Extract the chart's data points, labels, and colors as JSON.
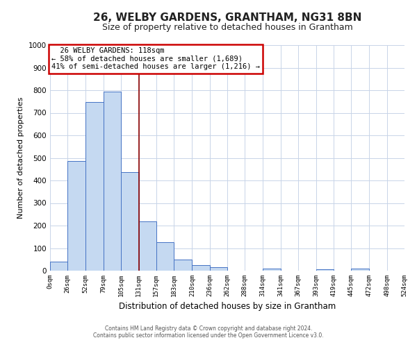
{
  "title1": "26, WELBY GARDENS, GRANTHAM, NG31 8BN",
  "title2": "Size of property relative to detached houses in Grantham",
  "xlabel": "Distribution of detached houses by size in Grantham",
  "ylabel": "Number of detached properties",
  "bin_edges": [
    0,
    26,
    52,
    79,
    105,
    131,
    157,
    183,
    210,
    236,
    262,
    288,
    314,
    341,
    367,
    393,
    419,
    445,
    472,
    498,
    524
  ],
  "bar_heights": [
    40,
    485,
    748,
    795,
    437,
    220,
    125,
    50,
    25,
    15,
    0,
    0,
    10,
    0,
    0,
    5,
    0,
    8,
    0,
    0
  ],
  "bar_color": "#c5d9f1",
  "bar_edge_color": "#4472c4",
  "grid_color": "#c8d4e8",
  "property_line_x": 131,
  "annotation_title": "26 WELBY GARDENS: 118sqm",
  "annotation_line1": "← 58% of detached houses are smaller (1,689)",
  "annotation_line2": "41% of semi-detached houses are larger (1,216) →",
  "annotation_box_color": "#ffffff",
  "annotation_box_edge": "#cc0000",
  "annotation_fontsize": 7.5,
  "title1_fontsize": 11,
  "title2_fontsize": 9,
  "tick_labels": [
    "0sqm",
    "26sqm",
    "52sqm",
    "79sqm",
    "105sqm",
    "131sqm",
    "157sqm",
    "183sqm",
    "210sqm",
    "236sqm",
    "262sqm",
    "288sqm",
    "314sqm",
    "341sqm",
    "367sqm",
    "393sqm",
    "419sqm",
    "445sqm",
    "472sqm",
    "498sqm",
    "524sqm"
  ],
  "ylim": [
    0,
    1000
  ],
  "yticks": [
    0,
    100,
    200,
    300,
    400,
    500,
    600,
    700,
    800,
    900,
    1000
  ],
  "footer1": "Contains HM Land Registry data © Crown copyright and database right 2024.",
  "footer2": "Contains public sector information licensed under the Open Government Licence v3.0."
}
